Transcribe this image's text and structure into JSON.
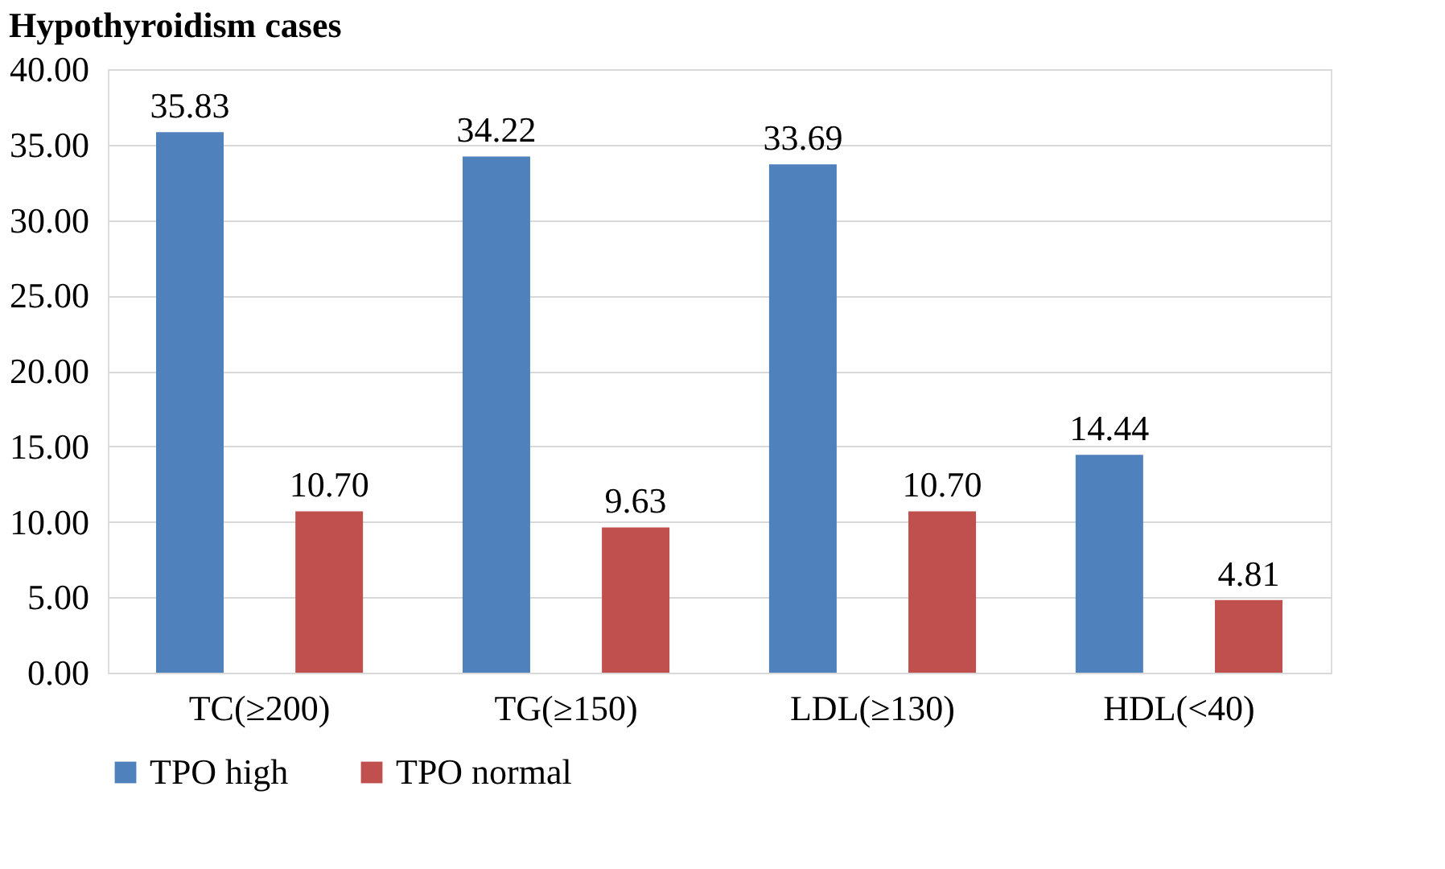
{
  "chart_data": {
    "type": "bar",
    "title": "Hypothyroidism cases",
    "categories": [
      "TC(≥200)",
      "TG(≥150)",
      "LDL(≥130)",
      "HDL(<40)"
    ],
    "series": [
      {
        "name": "TPO high",
        "color": "#4f81bd",
        "values": [
          35.83,
          34.22,
          33.69,
          14.44
        ],
        "value_labels": [
          "35.83",
          "34.22",
          "33.69",
          "14.44"
        ]
      },
      {
        "name": "TPO normal",
        "color": "#c0504d",
        "values": [
          10.7,
          9.63,
          10.7,
          4.81
        ],
        "value_labels": [
          "10.70",
          "9.63",
          "10.70",
          "4.81"
        ]
      }
    ],
    "ylim": [
      0,
      40
    ],
    "yticks": [
      {
        "value": 0,
        "label": "0.00"
      },
      {
        "value": 5,
        "label": "5.00"
      },
      {
        "value": 10,
        "label": "10.00"
      },
      {
        "value": 15,
        "label": "15.00"
      },
      {
        "value": 20,
        "label": "20.00"
      },
      {
        "value": 25,
        "label": "25.00"
      },
      {
        "value": 30,
        "label": "30.00"
      },
      {
        "value": 35,
        "label": "35.00"
      },
      {
        "value": 40,
        "label": "40.00"
      }
    ],
    "grid": "y",
    "legend": "bottom"
  }
}
